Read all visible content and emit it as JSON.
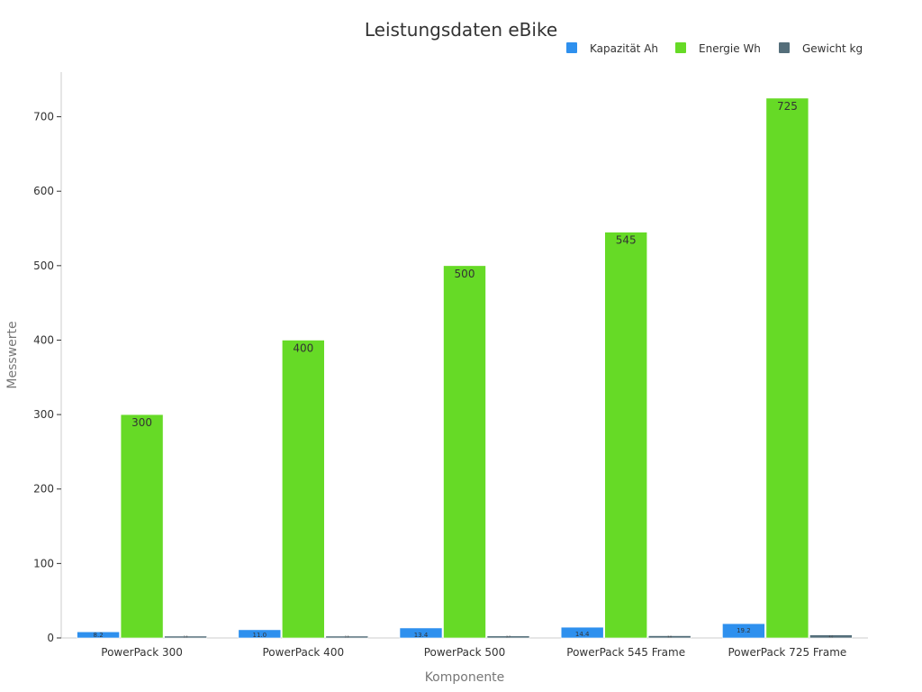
{
  "chart_data": {
    "type": "bar",
    "title": "Leistungsdaten eBike",
    "xlabel": "Komponente",
    "ylabel": "Messwerte",
    "categories": [
      "PowerPack 300",
      "PowerPack 400",
      "PowerPack 500",
      "PowerPack 545 Frame",
      "PowerPack 725 Frame"
    ],
    "series": [
      {
        "name": "Kapazität Ah",
        "color": "#2e90ee",
        "values": [
          8.2,
          11.0,
          13.4,
          14.4,
          19.2
        ],
        "labels": [
          "8.2",
          "11.0",
          "13.4",
          "14.4",
          "19.2"
        ]
      },
      {
        "name": "Energie Wh",
        "color": "#66da26",
        "values": [
          300,
          400,
          500,
          545,
          725
        ],
        "labels": [
          "300",
          "400",
          "500",
          "545",
          "725"
        ]
      },
      {
        "name": "Gewicht kg",
        "color": "#546e7a",
        "values": [
          2.5,
          2.5,
          2.7,
          3.0,
          4.0
        ],
        "labels": [
          "2.5",
          "2.5",
          "2.7",
          "3.0",
          "4.0"
        ]
      }
    ],
    "ylim": [
      0,
      760
    ],
    "yticks": [
      0,
      100,
      200,
      300,
      400,
      500,
      600,
      700
    ],
    "grid": false,
    "legend": "top-right"
  }
}
